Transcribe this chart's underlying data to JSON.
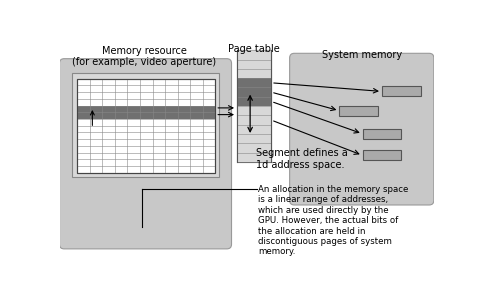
{
  "title_memory": "Memory resource\n(for example, video aperture)",
  "title_page_table": "Page table",
  "title_system_memory": "System memory",
  "label_segment": "Segment defines a\n1d address space.",
  "label_allocation": "An allocation in the memory space\nis a linear range of addresses,\nwhich are used directly by the\nGPU. However, the actual bits of\nthe allocation are held in\ndiscontiguous pages of system\nmemory.",
  "bg_color": "#ffffff",
  "gray_bg": "#c8c8c8",
  "dark_row_color": "#707070",
  "page_table_light": "#d8d8d8",
  "page_table_dark": "#707070",
  "system_memory_box": "#aaaaaa",
  "arrow_color": "#000000"
}
